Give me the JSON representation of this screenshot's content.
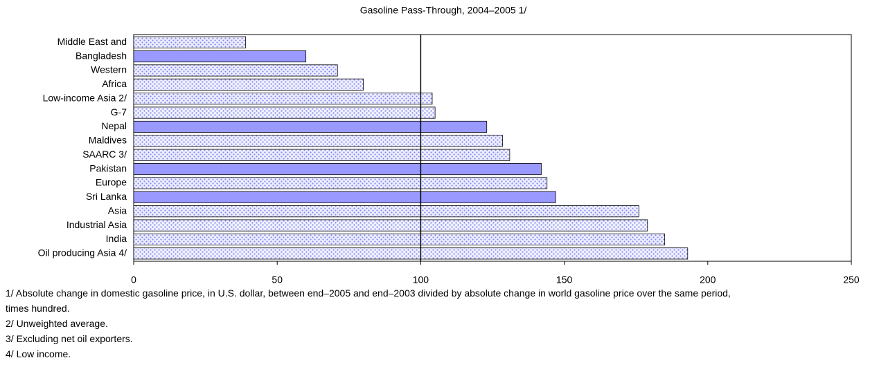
{
  "chart_data": {
    "type": "bar",
    "orientation": "horizontal",
    "title": "Gasoline Pass-Through, 2004–2005 1/",
    "categories": [
      "Middle East and",
      "Bangladesh",
      "Western",
      "Africa",
      "Low-income Asia 2/",
      "G-7",
      "Nepal",
      "Maldives",
      "SAARC 3/",
      "Pakistan",
      "Europe",
      "Sri Lanka",
      "Asia",
      "Industrial Asia",
      "India",
      "Oil producing Asia 4/"
    ],
    "values": [
      39,
      60,
      71,
      80,
      104,
      105,
      123,
      128.5,
      131,
      142,
      144,
      147,
      176,
      179,
      185,
      193
    ],
    "bar_styles": [
      "dotted",
      "solid",
      "dotted",
      "dotted",
      "dotted",
      "dotted",
      "solid",
      "dotted",
      "dotted",
      "solid",
      "dotted",
      "solid",
      "dotted",
      "dotted",
      "dotted",
      "dotted"
    ],
    "color": "#9999ff",
    "xlim": [
      0,
      250
    ],
    "xticks": [
      0,
      50,
      100,
      150,
      200,
      250
    ],
    "reference_line": 100,
    "grid": false,
    "notes": [
      "1/ Absolute change in domestic gasoline price, in U.S. dollar, between end–2005 and end–2003 divided by absolute change in world gasoline price over the same period, times hundred.",
      "2/ Unweighted average.",
      "3/ Excluding net oil exporters.",
      "4/ Low income."
    ]
  }
}
